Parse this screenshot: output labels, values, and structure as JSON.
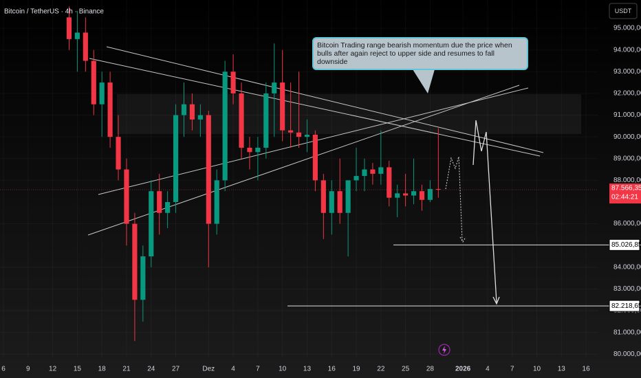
{
  "chart_data": {
    "type": "candlestick",
    "title": "Bitcoin / TetherUS · 4h · Binance",
    "currency": "USDT",
    "annotation": "Bitcoin Trading range bearish momentum due the price when bulls after again reject to upper side and resumes to fall downside",
    "up_color": "#089981",
    "down_color": "#f23645",
    "x": [
      8,
      9,
      10,
      11,
      12,
      13,
      14,
      15,
      16,
      17,
      18,
      19,
      20,
      21,
      22,
      23,
      24,
      25,
      26,
      27,
      28,
      29,
      30,
      31,
      32,
      33,
      34,
      35,
      36,
      37,
      38,
      39,
      40,
      41,
      42,
      43,
      44,
      45,
      46,
      47,
      48,
      49,
      50,
      51,
      52,
      53
    ],
    "open": [
      95500,
      94500,
      94800,
      93500,
      91500,
      92500,
      90000,
      88500,
      86000,
      82500,
      84500,
      87500,
      86500,
      87000,
      91000,
      91500,
      90800,
      91000,
      86000,
      88000,
      93000,
      92000,
      89500,
      89300,
      89500,
      92000,
      92500,
      90300,
      90200,
      90000,
      90100,
      88000,
      86500,
      87500,
      86500,
      88000,
      88200,
      88500,
      88300,
      88600,
      87200,
      87400,
      87300,
      87500,
      87100,
      87600
    ],
    "high": [
      96000,
      95800,
      95500,
      94000,
      93000,
      93000,
      91000,
      89000,
      86500,
      85000,
      88000,
      88300,
      87500,
      91500,
      92500,
      92000,
      91500,
      91200,
      88500,
      93500,
      93800,
      92500,
      90000,
      90000,
      92500,
      94300,
      94000,
      92500,
      93000,
      90800,
      90300,
      88300,
      88000,
      89000,
      88000,
      89500,
      89000,
      88800,
      90300,
      88900,
      87800,
      88300,
      89000,
      87800,
      88000,
      90400
    ],
    "low": [
      94000,
      93000,
      93000,
      91000,
      90000,
      89500,
      88000,
      85000,
      80600,
      81500,
      84000,
      85500,
      85800,
      86500,
      90000,
      90300,
      90000,
      84000,
      85500,
      87500,
      91500,
      89000,
      88500,
      88000,
      89000,
      90000,
      89800,
      89500,
      89500,
      89300,
      87500,
      85300,
      85500,
      86000,
      84500,
      87500,
      87500,
      87800,
      87800,
      86800,
      86300,
      86800,
      86900,
      86600,
      87000,
      87200
    ],
    "close": [
      94500,
      94800,
      93500,
      91500,
      92500,
      90000,
      88500,
      86000,
      82500,
      84500,
      87500,
      86500,
      87000,
      91000,
      91500,
      90800,
      91000,
      86000,
      88000,
      93000,
      92000,
      89500,
      89300,
      89500,
      92000,
      92500,
      90300,
      90200,
      90000,
      90100,
      88000,
      86500,
      87500,
      86500,
      88000,
      88200,
      88500,
      88300,
      88600,
      87200,
      87400,
      87300,
      87500,
      87100,
      87600,
      87570
    ],
    "xlim": [
      -0.42,
      72.5
    ],
    "xticks": [
      {
        "value": 0,
        "label": "6"
      },
      {
        "value": 3,
        "label": "9"
      },
      {
        "value": 6,
        "label": "12"
      },
      {
        "value": 9,
        "label": "15"
      },
      {
        "value": 12,
        "label": "18"
      },
      {
        "value": 15,
        "label": "21"
      },
      {
        "value": 18,
        "label": "24"
      },
      {
        "value": 21,
        "label": "27"
      },
      {
        "value": 25,
        "label": "Dez"
      },
      {
        "value": 28,
        "label": "4"
      },
      {
        "value": 31,
        "label": "7"
      },
      {
        "value": 34,
        "label": "10"
      },
      {
        "value": 37,
        "label": "13"
      },
      {
        "value": 40,
        "label": "16"
      },
      {
        "value": 43,
        "label": "19"
      },
      {
        "value": 46,
        "label": "22"
      },
      {
        "value": 49,
        "label": "25"
      },
      {
        "value": 52,
        "label": "28"
      },
      {
        "value": 56,
        "label": "2026"
      },
      {
        "value": 59,
        "label": "4"
      },
      {
        "value": 62,
        "label": "7"
      },
      {
        "value": 65,
        "label": "10"
      },
      {
        "value": 68,
        "label": "13"
      },
      {
        "value": 71,
        "label": "16"
      }
    ],
    "ylim": [
      79850,
      96300
    ],
    "yticks": [
      {
        "value": 80000,
        "label": "80.000,00"
      },
      {
        "value": 81000,
        "label": "81.000,00"
      },
      {
        "value": 82000,
        "label": "82.000,00"
      },
      {
        "value": 83000,
        "label": "83.000,00"
      },
      {
        "value": 84000,
        "label": "84.000,00"
      },
      {
        "value": 86000,
        "label": "86.000,00"
      },
      {
        "value": 88000,
        "label": "88.000,00"
      },
      {
        "value": 89000,
        "label": "89.000,00"
      },
      {
        "value": 90000,
        "label": "90.000,00"
      },
      {
        "value": 91000,
        "label": "91.000,00"
      },
      {
        "value": 92000,
        "label": "92.000,00"
      },
      {
        "value": 93000,
        "label": "93.000,00"
      },
      {
        "value": 94000,
        "label": "94.000,00"
      },
      {
        "value": 95000,
        "label": "95.000,00"
      }
    ],
    "levels": [
      {
        "value": 85026.85,
        "label": "85.026,85"
      },
      {
        "value": 82218.65,
        "label": "82.218,65"
      }
    ],
    "last_price": {
      "value": 87566.35,
      "label": "87.566,35"
    },
    "countdown": "02:44:21"
  }
}
